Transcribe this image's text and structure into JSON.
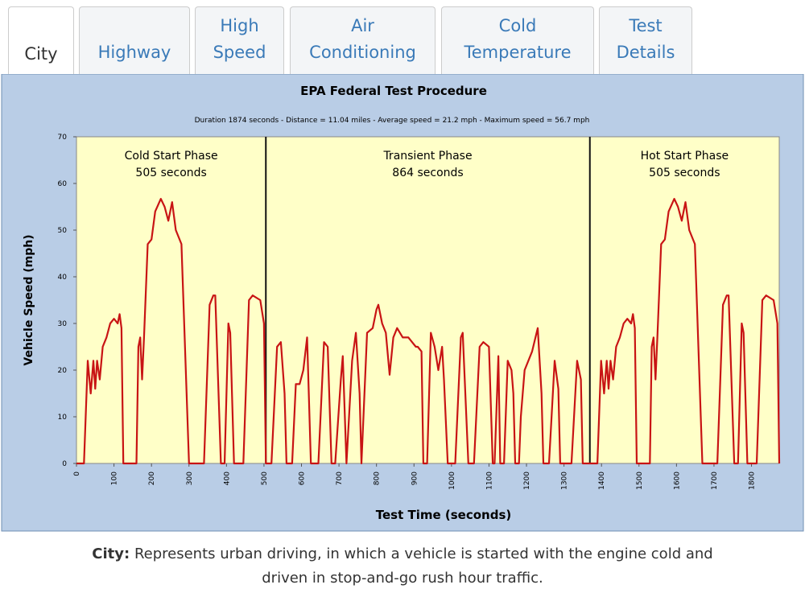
{
  "tabs": [
    [
      "City"
    ],
    [
      "Highway"
    ],
    [
      "High",
      "Speed"
    ],
    [
      "Air",
      "Conditioning"
    ],
    [
      "Cold",
      "Temperature"
    ],
    [
      "Test",
      "Details"
    ]
  ],
  "chart_data": {
    "type": "line",
    "title": "EPA Federal Test Procedure",
    "subtitle": "Duration 1874 seconds - Distance = 11.04 miles - Average speed = 21.2 mph - Maximum speed = 56.7 mph",
    "x_label": "Test Time (seconds)",
    "y_label": "Vehicle Speed (mph)",
    "phases": [
      {
        "name": "Cold Start Phase",
        "duration": 505,
        "duration_label": "505 seconds"
      },
      {
        "name": "Transient Phase",
        "duration": 864,
        "duration_label": "864 seconds"
      },
      {
        "name": "Hot Start Phase",
        "duration": 505,
        "duration_label": "505 seconds"
      }
    ],
    "color": "#c81414",
    "xlim": [
      0,
      1874
    ],
    "ylim": [
      0,
      70
    ],
    "xticks": [
      0,
      100,
      200,
      300,
      400,
      500,
      600,
      700,
      800,
      900,
      1000,
      1100,
      1200,
      1300,
      1400,
      1500,
      1600,
      1700,
      1800
    ],
    "yticks": [
      0,
      10,
      20,
      30,
      40,
      50,
      60,
      70
    ],
    "x": [
      0,
      20,
      30,
      38,
      45,
      50,
      55,
      62,
      70,
      80,
      90,
      100,
      110,
      115,
      120,
      125,
      160,
      165,
      170,
      175,
      180,
      190,
      200,
      210,
      225,
      235,
      245,
      255,
      265,
      280,
      300,
      340,
      355,
      365,
      370,
      385,
      395,
      405,
      410,
      420,
      445,
      460,
      470,
      490,
      500,
      505,
      520,
      535,
      545,
      555,
      560,
      575,
      585,
      595,
      605,
      615,
      625,
      645,
      660,
      670,
      680,
      690,
      705,
      710,
      720,
      735,
      745,
      755,
      760,
      775,
      790,
      800,
      805,
      815,
      825,
      835,
      845,
      855,
      870,
      885,
      895,
      905,
      910,
      920,
      925,
      935,
      945,
      955,
      965,
      975,
      980,
      990,
      1010,
      1025,
      1030,
      1045,
      1060,
      1075,
      1085,
      1100,
      1110,
      1115,
      1125,
      1130,
      1140,
      1150,
      1160,
      1165,
      1170,
      1180,
      1185,
      1195,
      1215,
      1230,
      1240,
      1245,
      1260,
      1275,
      1285,
      1290,
      1320,
      1335,
      1345,
      1350,
      1369,
      1389,
      1399,
      1407,
      1414,
      1419,
      1424,
      1431,
      1439,
      1449,
      1459,
      1469,
      1479,
      1484,
      1489,
      1494,
      1529,
      1534,
      1539,
      1544,
      1549,
      1559,
      1569,
      1579,
      1594,
      1604,
      1614,
      1624,
      1634,
      1649,
      1669,
      1709,
      1724,
      1734,
      1739,
      1754,
      1764,
      1774,
      1779,
      1789,
      1814,
      1829,
      1839,
      1859,
      1869,
      1874
    ],
    "values": [
      0,
      0,
      22,
      15,
      22,
      16,
      22,
      18,
      25,
      27,
      30,
      31,
      30,
      32,
      29,
      0,
      0,
      25,
      27,
      18,
      27,
      47,
      48,
      54,
      56.7,
      55,
      52,
      56,
      50,
      47,
      0,
      0,
      34,
      36,
      36,
      0,
      0,
      30,
      28,
      0,
      0,
      35,
      36,
      35,
      30,
      0,
      0,
      25,
      26,
      15,
      0,
      0,
      17,
      17,
      20,
      27,
      0,
      0,
      26,
      25,
      0,
      0,
      18,
      23,
      0,
      22,
      28,
      15,
      0,
      28,
      29,
      33,
      34,
      30,
      28,
      19,
      27,
      29,
      27,
      27,
      26,
      25,
      25,
      24,
      0,
      0,
      28,
      25,
      20,
      25,
      18,
      0,
      0,
      27,
      28,
      0,
      0,
      25,
      26,
      25,
      0,
      0,
      23,
      0,
      0,
      22,
      20,
      15,
      0,
      0,
      10,
      20,
      24,
      29,
      15,
      0,
      0,
      22,
      16,
      0,
      0,
      22,
      18,
      0,
      0,
      0,
      22,
      15,
      22,
      16,
      22,
      18,
      25,
      27,
      30,
      31,
      30,
      32,
      29,
      0,
      0,
      25,
      27,
      18,
      27,
      47,
      48,
      54,
      56.7,
      55,
      52,
      56,
      50,
      47,
      0,
      0,
      34,
      36,
      36,
      0,
      0,
      30,
      28,
      0,
      0,
      35,
      36,
      35,
      30,
      0
    ]
  },
  "caption": {
    "label": "City:",
    "lines": [
      "Represents urban driving, in which a vehicle is started with the engine cold and",
      "driven in stop-and-go rush hour traffic."
    ]
  }
}
